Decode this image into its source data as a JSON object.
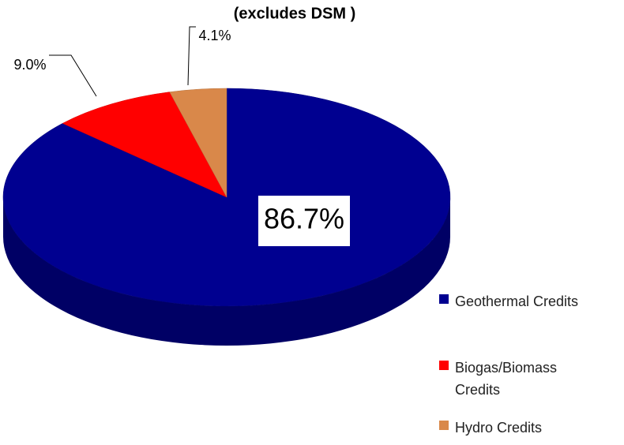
{
  "chart_data": {
    "type": "pie3d",
    "title": "(excludes DSM )",
    "categories": [
      "Geothermal Credits",
      "Biogas/Biomass Credits",
      "Hydro Credits"
    ],
    "values": [
      86.7,
      9.0,
      4.1
    ],
    "value_labels": [
      "86.7%",
      "9.0%",
      "4.1%"
    ],
    "colors": [
      "#000090",
      "#ff0000",
      "#d9884a"
    ],
    "legend": "right"
  }
}
